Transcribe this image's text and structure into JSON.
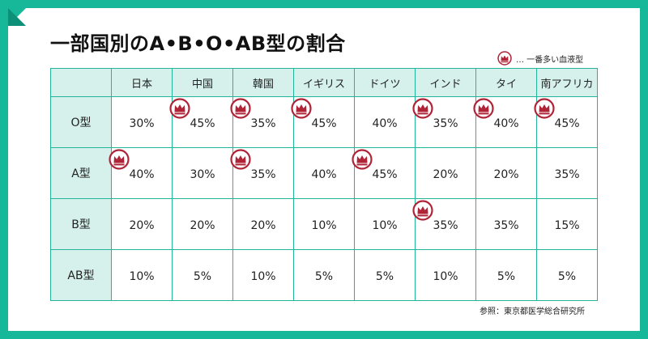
{
  "title": "一部国別のA•B•O•AB型の割合",
  "legend_label": "… 一番多い血液型",
  "source": "参照：東京都医学総合研究所",
  "colors": {
    "frame": "#17b79a",
    "header_bg": "#d6f1ec",
    "crown": "#b02437"
  },
  "table": {
    "columns": [
      "日本",
      "中国",
      "韓国",
      "イギリス",
      "ドイツ",
      "インド",
      "タイ",
      "南アフリカ"
    ],
    "rows": [
      {
        "label": "O型",
        "values": [
          "30%",
          "45%",
          "35%",
          "45%",
          "40%",
          "35%",
          "40%",
          "45%"
        ],
        "highlight": [
          false,
          true,
          true,
          true,
          false,
          true,
          true,
          true
        ]
      },
      {
        "label": "A型",
        "values": [
          "40%",
          "30%",
          "35%",
          "40%",
          "45%",
          "20%",
          "20%",
          "35%"
        ],
        "highlight": [
          true,
          false,
          true,
          false,
          true,
          false,
          false,
          false
        ]
      },
      {
        "label": "B型",
        "values": [
          "20%",
          "20%",
          "20%",
          "10%",
          "10%",
          "35%",
          "35%",
          "15%"
        ],
        "highlight": [
          false,
          false,
          false,
          false,
          false,
          true,
          false,
          false
        ]
      },
      {
        "label": "AB型",
        "values": [
          "10%",
          "5%",
          "10%",
          "5%",
          "5%",
          "10%",
          "5%",
          "5%"
        ],
        "highlight": [
          false,
          false,
          false,
          false,
          false,
          false,
          false,
          false
        ]
      }
    ]
  }
}
